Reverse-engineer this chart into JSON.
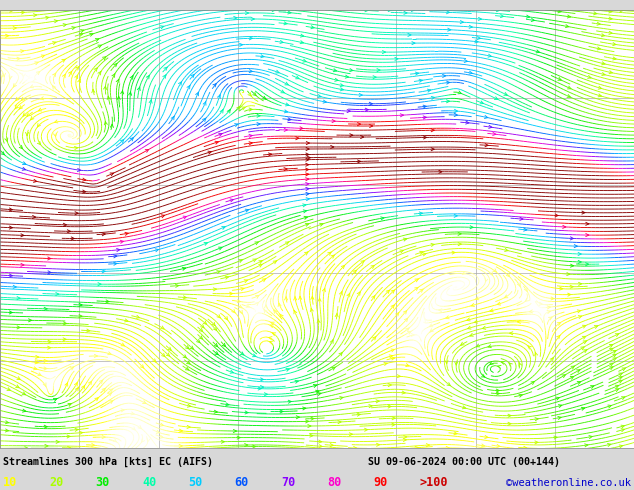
{
  "title_left": "Streamlines 300 hPa [kts] EC (AIFS)",
  "title_right": "SU 09-06-2024 00:00 UTC (00+144)",
  "credit": "©weatheronline.co.uk",
  "legend_values": [
    "10",
    "20",
    "30",
    "40",
    "50",
    "60",
    "70",
    "80",
    "90"
  ],
  "legend_label_gt": ">100",
  "bg_color": "#d8d8d8",
  "plot_bg": "#ffffff",
  "grid_color": "#aaaaaa",
  "bottom_bar_color": "#c8c8c8",
  "colormap_colors": [
    "#ffffff",
    "#ffff00",
    "#aaff00",
    "#00ee00",
    "#00ffaa",
    "#00ccff",
    "#0055ff",
    "#8800ff",
    "#ff00cc",
    "#ff0000",
    "#cc0000",
    "#880000"
  ],
  "speed_vmin": 0,
  "speed_vmax": 110,
  "seed": 7,
  "figsize": [
    6.34,
    4.9
  ],
  "dpi": 100,
  "bottom_legend_colors": [
    "#ffff00",
    "#aaff00",
    "#00ee00",
    "#00ffaa",
    "#00ccff",
    "#0055ff",
    "#8800ff",
    "#ff00cc",
    "#ff0000"
  ],
  "legend_gt_color": "#cc0000",
  "credit_color": "#0000cc"
}
